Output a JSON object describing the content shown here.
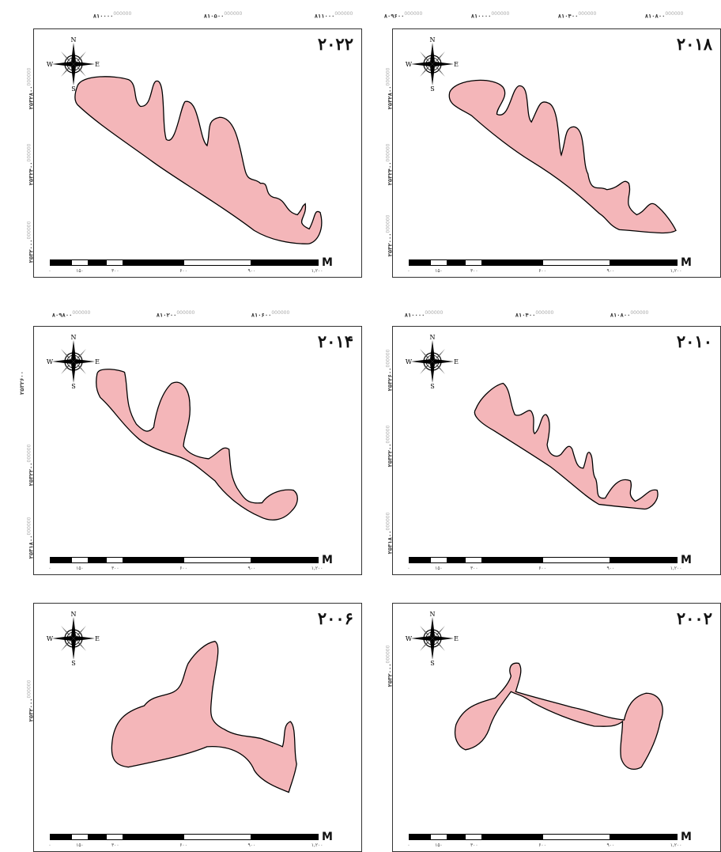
{
  "map_panels": [
    {
      "year": "۲۰۲۲",
      "x_ticks": [
        {
          "label": "۸۱۰۰۰۰",
          "suffix": "000000"
        },
        {
          "label": "۸۱۰۵۰۰",
          "suffix": "000000"
        },
        {
          "label": "۸۱۱۰۰۰",
          "suffix": "000000"
        }
      ],
      "y_ticks": [
        {
          "label": "۲۵۳۲۸۰۰",
          "suffix": "000000"
        },
        {
          "label": "۲۵۳۲۴۰۰",
          "suffix": "000000"
        },
        {
          "label": "۲۵۳۲۰۰۰",
          "suffix": "000000"
        }
      ]
    },
    {
      "year": "۲۰۱۸",
      "x_ticks": [
        {
          "label": "۸۰۹۶۰۰",
          "suffix": "000000"
        },
        {
          "label": "۸۱۰۰۰۰",
          "suffix": "000000"
        },
        {
          "label": "۸۱۰۴۰۰",
          "suffix": "000000"
        },
        {
          "label": "۸۱۰۸۰۰",
          "suffix": "000000"
        }
      ],
      "y_ticks": [
        {
          "label": "۲۵۳۲۸۰۰",
          "suffix": "000000"
        },
        {
          "label": "۲۵۳۲۴۰۰",
          "suffix": "000000"
        },
        {
          "label": "۲۵۳۲۰۰۰",
          "suffix": "000000"
        }
      ]
    },
    {
      "year": "۲۰۱۴",
      "x_ticks": [
        {
          "label": "۸۰۹۸۰۰",
          "suffix": "000000"
        },
        {
          "label": "۸۱۰۲۰۰",
          "suffix": "000000"
        },
        {
          "label": "۸۱۰۶۰۰",
          "suffix": "000000"
        }
      ],
      "y_ticks": [
        {
          "label": "۲۵۳۲۶۰۰",
          "suffix": ""
        },
        {
          "label": "۲۵۳۲۲۰۰",
          "suffix": "000000"
        },
        {
          "label": "۲۵۳۱۸۰۰",
          "suffix": "000000"
        }
      ]
    },
    {
      "year": "۲۰۱۰",
      "x_ticks": [
        {
          "label": "۸۱۰۰۰۰",
          "suffix": "000000"
        },
        {
          "label": "۸۱۰۴۰۰",
          "suffix": "000000"
        },
        {
          "label": "۸۱۰۸۰۰",
          "suffix": "000000"
        }
      ],
      "y_ticks": [
        {
          "label": "۲۵۳۲۶۰۰",
          "suffix": "000000"
        },
        {
          "label": "۲۵۳۲۲۰۰",
          "suffix": "000000"
        },
        {
          "label": "۲۵۳۱۸۰۰",
          "suffix": "000000"
        }
      ]
    },
    {
      "year": "۲۰۰۶",
      "x_ticks": [],
      "y_ticks": [
        {
          "label": "۲۵۳۲۰۰۰",
          "suffix": "000000"
        }
      ]
    },
    {
      "year": "۲۰۰۲",
      "x_ticks": [],
      "y_ticks": [
        {
          "label": "۲۵۳۲۰۰۰",
          "suffix": "000000"
        }
      ]
    }
  ],
  "scale_bar": {
    "unit": "M",
    "labels": [
      "۰",
      "۱۵۰",
      "۳۰۰",
      "۶۰۰",
      "۹۰۰",
      "۱,۲۰۰"
    ]
  },
  "compass": {
    "n": "N",
    "s": "S",
    "e": "E",
    "w": "W"
  },
  "colors": {
    "lake_fill": "#f4b6b9",
    "lake_stroke": "#000000",
    "frame": "#333333"
  }
}
